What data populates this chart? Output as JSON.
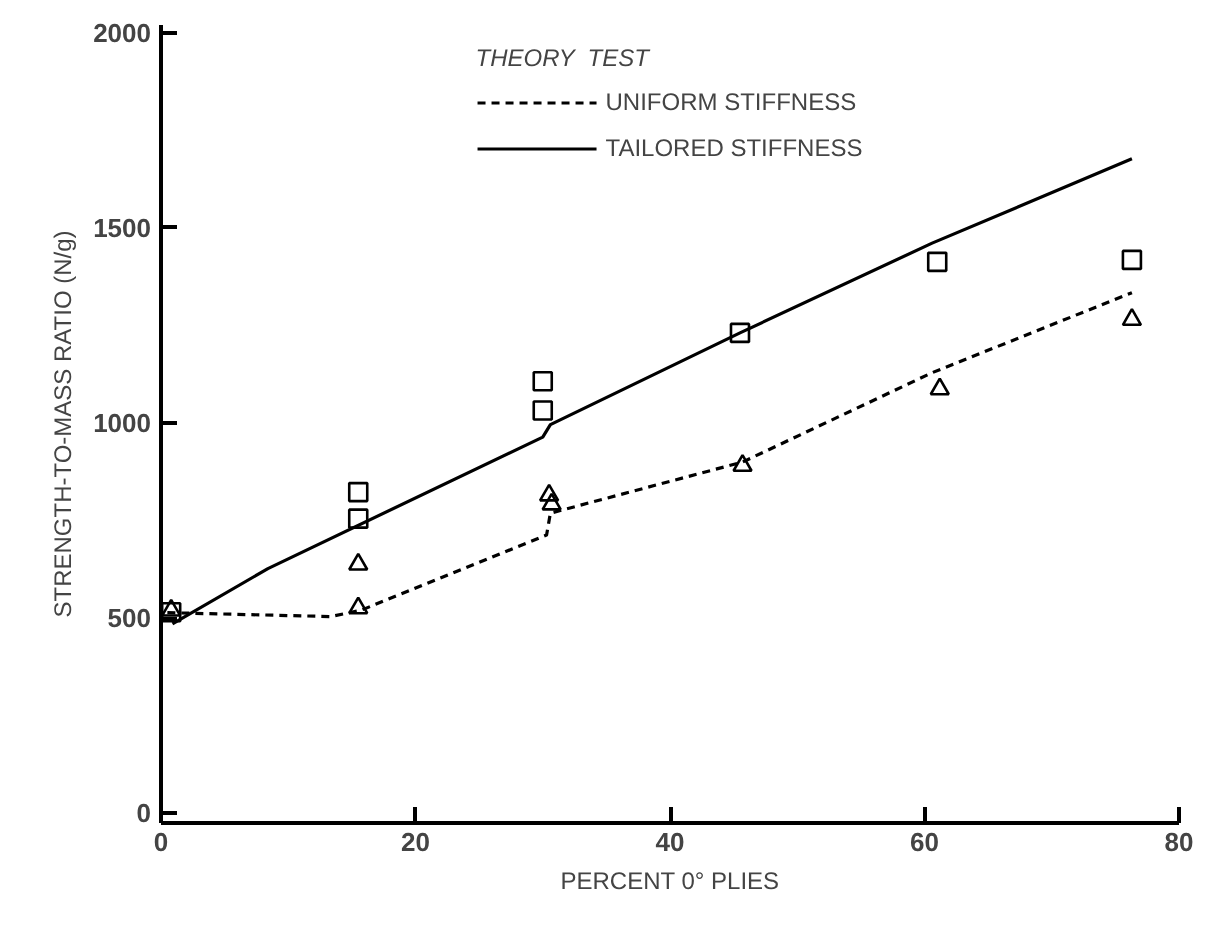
{
  "chart_data": {
    "type": "line",
    "xlabel": "PERCENT 0° PLIES",
    "ylabel": "STRENGTH-TO-MASS RATIO (N/g)",
    "legend_title": "THEORY  TEST",
    "legend": "top",
    "grid": false,
    "xlim": [
      0,
      80
    ],
    "xticks": [
      0,
      20,
      40,
      60,
      80
    ],
    "ylim": [
      -25,
      2020
    ],
    "yticks": [
      0,
      500,
      1000,
      1500,
      2000
    ],
    "series": [
      {
        "name": "UNIFORM STIFFNESS",
        "line_style": "dashed",
        "color": "#000000",
        "x": [
          0.5,
          13.3,
          15.7,
          30.3,
          30.6,
          45.7,
          60.6,
          76.3
        ],
        "values": [
          514,
          504,
          520,
          713,
          769,
          900,
          1129,
          1334
        ]
      },
      {
        "type": "scatter",
        "marker": "triangle",
        "color": "#000000",
        "x": [
          0.8,
          15.5,
          15.5,
          30.5,
          30.7,
          45.7,
          61.2,
          76.3
        ],
        "values": [
          520,
          638,
          526,
          815,
          792,
          891,
          1087,
          1265
        ]
      },
      {
        "name": "TAILORED STIFFNESS",
        "line_style": "solid",
        "color": "#000000",
        "x": [
          0.9,
          8.4,
          30.0,
          30.6,
          45.5,
          60.6,
          76.3
        ],
        "values": [
          485,
          627,
          964,
          996,
          1231,
          1461,
          1677
        ]
      },
      {
        "type": "scatter",
        "marker": "square",
        "color": "#000000",
        "x": [
          0.8,
          15.5,
          15.5,
          30.0,
          30.0,
          45.5,
          61.0,
          76.3
        ],
        "values": [
          515,
          823,
          755,
          1107,
          1032,
          1231,
          1413,
          1418
        ]
      }
    ]
  }
}
